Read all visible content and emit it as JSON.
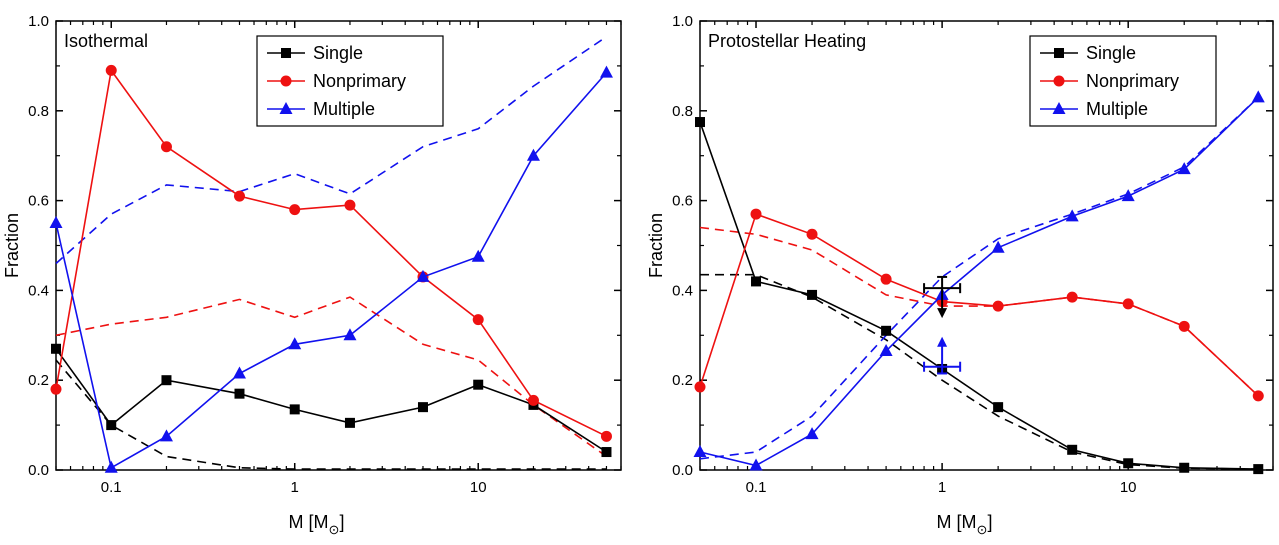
{
  "colors": {
    "single": "#000000",
    "nonprimary": "#ee1111",
    "multiple": "#1111ee",
    "axis": "#000000"
  },
  "chart_data": [
    {
      "type": "line",
      "title": "Isothermal",
      "xlabel": "M [M",
      "xlabel_sub": "⊙",
      "xlabel_close": "]",
      "ylabel": "Fraction",
      "xscale": "log",
      "xlim": [
        0.05,
        60
      ],
      "ylim": [
        0,
        1.0
      ],
      "xticks": [
        {
          "v": 0.1,
          "label": "0.1"
        },
        {
          "v": 1,
          "label": "1"
        },
        {
          "v": 10,
          "label": "10"
        }
      ],
      "yticks": [
        {
          "v": 0,
          "label": "0.0"
        },
        {
          "v": 0.2,
          "label": "0.2"
        },
        {
          "v": 0.4,
          "label": "0.4"
        },
        {
          "v": 0.6,
          "label": "0.6"
        },
        {
          "v": 0.8,
          "label": "0.8"
        },
        {
          "v": 1.0,
          "label": "1.0"
        }
      ],
      "legend_position": "top-center",
      "legend": [
        "Single",
        "Nonprimary",
        "Multiple"
      ],
      "x": [
        0.05,
        0.1,
        0.2,
        0.5,
        1,
        2,
        5,
        10,
        20,
        50
      ],
      "series": [
        {
          "name": "Single",
          "color_key": "single",
          "marker": "square",
          "style": "solid",
          "values": [
            0.27,
            0.1,
            0.2,
            0.17,
            0.135,
            0.105,
            0.14,
            0.19,
            0.145,
            0.04
          ]
        },
        {
          "name": "Nonprimary",
          "color_key": "nonprimary",
          "marker": "circle",
          "style": "solid",
          "values": [
            0.18,
            0.89,
            0.72,
            0.61,
            0.58,
            0.59,
            0.43,
            0.335,
            0.155,
            0.075
          ]
        },
        {
          "name": "Multiple",
          "color_key": "multiple",
          "marker": "triangle",
          "style": "solid",
          "values": [
            0.55,
            0.005,
            0.075,
            0.215,
            0.28,
            0.3,
            0.43,
            0.475,
            0.7,
            0.885
          ]
        },
        {
          "color_key": "single",
          "marker": "none",
          "style": "dashed",
          "values": [
            0.245,
            0.1,
            0.03,
            0.005,
            0.002,
            0.002,
            0.002,
            0.002,
            0.002,
            0.002
          ]
        },
        {
          "color_key": "nonprimary",
          "marker": "none",
          "style": "dashed",
          "values": [
            0.3,
            0.325,
            0.34,
            0.38,
            0.34,
            0.385,
            0.28,
            0.245,
            0.145,
            0.03
          ]
        },
        {
          "color_key": "multiple",
          "marker": "none",
          "style": "dashed",
          "values": [
            0.46,
            0.57,
            0.635,
            0.62,
            0.66,
            0.615,
            0.72,
            0.76,
            0.855,
            0.965
          ]
        }
      ]
    },
    {
      "type": "line",
      "title": "Protostellar Heating",
      "xlabel": "M [M",
      "xlabel_sub": "⊙",
      "xlabel_close": "]",
      "ylabel": "Fraction",
      "xscale": "log",
      "xlim": [
        0.05,
        60
      ],
      "ylim": [
        0,
        1.0
      ],
      "xticks": [
        {
          "v": 0.1,
          "label": "0.1"
        },
        {
          "v": 1,
          "label": "1"
        },
        {
          "v": 10,
          "label": "10"
        }
      ],
      "yticks": [
        {
          "v": 0,
          "label": "0.0"
        },
        {
          "v": 0.2,
          "label": "0.2"
        },
        {
          "v": 0.4,
          "label": "0.4"
        },
        {
          "v": 0.6,
          "label": "0.6"
        },
        {
          "v": 0.8,
          "label": "0.8"
        },
        {
          "v": 1.0,
          "label": "1.0"
        }
      ],
      "legend_position": "top-right",
      "legend": [
        "Single",
        "Nonprimary",
        "Multiple"
      ],
      "x": [
        0.05,
        0.1,
        0.2,
        0.5,
        1,
        2,
        5,
        10,
        20,
        50
      ],
      "series": [
        {
          "name": "Single",
          "color_key": "single",
          "marker": "square",
          "style": "solid",
          "values": [
            0.775,
            0.42,
            0.39,
            0.31,
            0.225,
            0.14,
            0.045,
            0.015,
            0.005,
            0.002
          ]
        },
        {
          "name": "Nonprimary",
          "color_key": "nonprimary",
          "marker": "circle",
          "style": "solid",
          "values": [
            0.185,
            0.57,
            0.525,
            0.425,
            0.375,
            0.365,
            0.385,
            0.37,
            0.32,
            0.165
          ]
        },
        {
          "name": "Multiple",
          "color_key": "multiple",
          "marker": "triangle",
          "style": "solid",
          "values": [
            0.04,
            0.01,
            0.08,
            0.265,
            0.39,
            0.495,
            0.565,
            0.61,
            0.67,
            0.83
          ]
        },
        {
          "color_key": "single",
          "marker": "none",
          "style": "dashed",
          "values": [
            0.435,
            0.435,
            0.385,
            0.29,
            0.2,
            0.12,
            0.04,
            0.012,
            0.004,
            0.002
          ]
        },
        {
          "color_key": "nonprimary",
          "marker": "none",
          "style": "dashed",
          "values": [
            0.54,
            0.525,
            0.49,
            0.39,
            0.365,
            0.365,
            0.385,
            0.37,
            0.32,
            0.165
          ]
        },
        {
          "color_key": "multiple",
          "marker": "none",
          "style": "dashed",
          "values": [
            0.025,
            0.04,
            0.12,
            0.3,
            0.43,
            0.515,
            0.57,
            0.615,
            0.675,
            0.83
          ]
        }
      ],
      "observations": [
        {
          "color_key": "single",
          "x": 1,
          "y": 0.405,
          "xerr": [
            0.8,
            1.25
          ],
          "yerr_up": 0.025,
          "arrow": "down",
          "arrow_to": 0.345
        },
        {
          "color_key": "multiple",
          "x": 1,
          "y": 0.23,
          "xerr": [
            0.8,
            1.25
          ],
          "yerr_down": 0.015,
          "arrow": "up",
          "arrow_to": 0.29
        }
      ]
    }
  ]
}
